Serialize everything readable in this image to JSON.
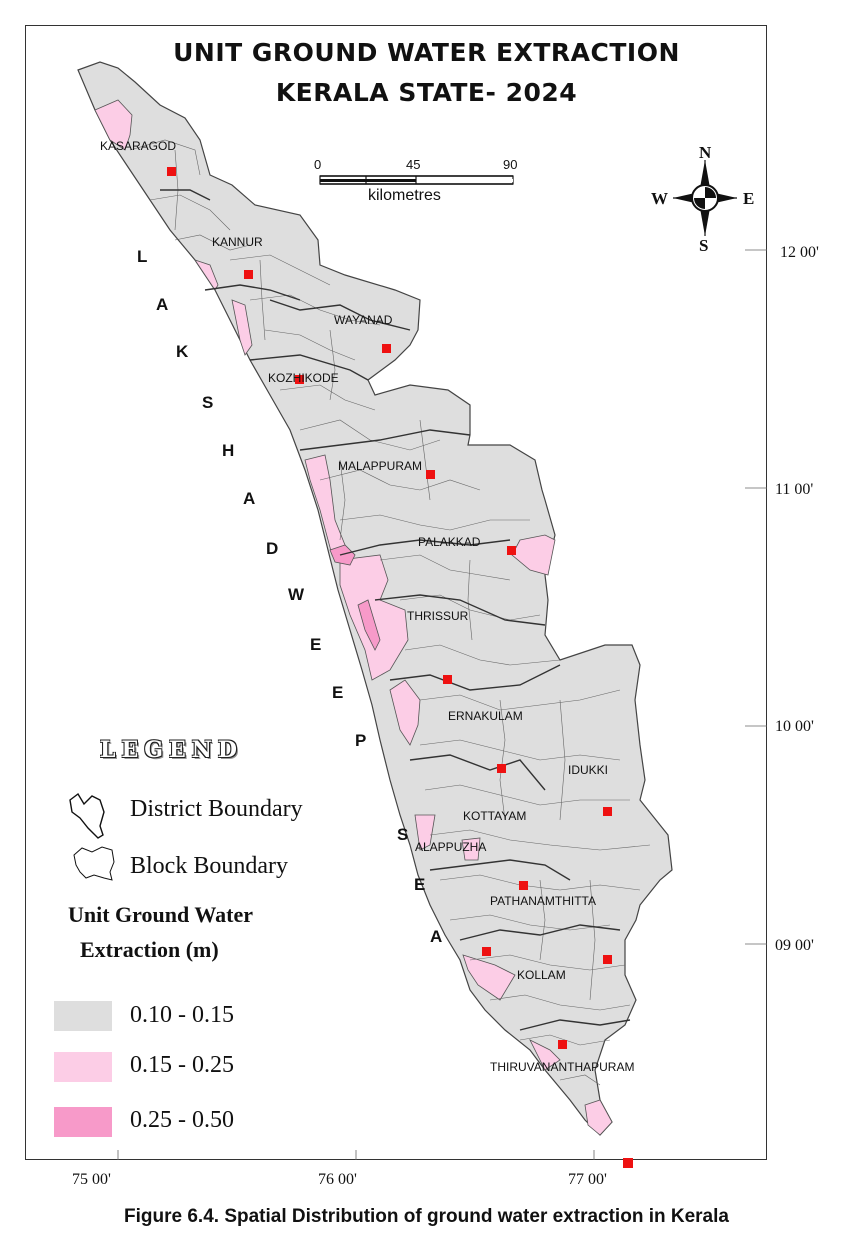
{
  "title": {
    "line1": "UNIT GROUND WATER EXTRACTION",
    "line2": "KERALA STATE- 2024"
  },
  "scale_bar": {
    "ticks": [
      "0",
      "45",
      "90"
    ],
    "unit": "kilometres"
  },
  "north_arrow": {
    "n": "N",
    "s": "S",
    "e": "E",
    "w": "W"
  },
  "latitude_labels": [
    "12 00'",
    "11 00'",
    "10 00'",
    "09 00'"
  ],
  "longitude_labels": [
    "75 00'",
    "76 00'",
    "77 00'"
  ],
  "sea_label": [
    "L",
    "A",
    "K",
    "S",
    "H",
    "A",
    "D",
    "W",
    "E",
    "E",
    "P",
    "S",
    "E",
    "A"
  ],
  "districts": [
    "KASARAGOD",
    "KANNUR",
    "WAYANAD",
    "KOZHIKODE",
    "MALAPPURAM",
    "PALAKKAD",
    "THRISSUR",
    "ERNAKULAM",
    "IDUKKI",
    "KOTTAYAM",
    "ALAPPUZHA",
    "PATHANAMTHITTA",
    "KOLLAM",
    "THIRUVANANTHAPURAM"
  ],
  "legend": {
    "title": "LEGEND",
    "district_boundary": "District Boundary",
    "block_boundary": "Block Boundary",
    "heading_line1": "Unit Ground Water",
    "heading_line2": "Extraction (m)",
    "classes": [
      {
        "label": "0.10 -  0.15",
        "color": "#dedede"
      },
      {
        "label": "0.15 -  0.25",
        "color": "#fccde6"
      },
      {
        "label": "0.25 -  0.50",
        "color": "#f79ac9"
      }
    ]
  },
  "colors": {
    "low": "#dedede",
    "medium": "#fccde6",
    "high": "#f79ac9",
    "hq_marker": "#ee1111"
  },
  "caption": "Figure 6.4. Spatial Distribution of ground water extraction in Kerala"
}
